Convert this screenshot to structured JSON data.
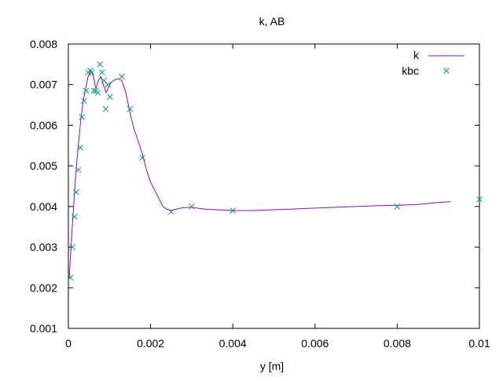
{
  "chart_data": {
    "type": "line",
    "title": "k, AB",
    "xlabel": "y [m]",
    "ylabel": "",
    "xlim": [
      0,
      0.01
    ],
    "ylim": [
      0.001,
      0.008
    ],
    "x_ticks": [
      "0",
      "0.002",
      "0.004",
      "0.006",
      "0.008",
      "0.01"
    ],
    "y_ticks": [
      "0.001",
      "0.002",
      "0.003",
      "0.004",
      "0.005",
      "0.006",
      "0.007",
      "0.008"
    ],
    "x_tick_values": [
      0,
      0.002,
      0.004,
      0.006,
      0.008,
      0.01
    ],
    "y_tick_values": [
      0.001,
      0.002,
      0.003,
      0.004,
      0.005,
      0.006,
      0.007,
      0.008
    ],
    "grid": false,
    "legend_position": "top-right",
    "series": [
      {
        "name": "k",
        "style": "line",
        "color": "#9400d3",
        "x": [
          2e-05,
          6e-05,
          0.0001,
          0.00014,
          0.00018,
          0.00024,
          0.0003,
          0.00036,
          0.00042,
          0.00048,
          0.00055,
          0.00061,
          0.00067,
          0.00073,
          0.00079,
          0.00085,
          0.00092,
          0.00098,
          0.00104,
          0.0011,
          0.0012,
          0.0013,
          0.0014,
          0.0015,
          0.0016,
          0.0017,
          0.0018,
          0.0019,
          0.002,
          0.0021,
          0.0022,
          0.0023,
          0.0024,
          0.0025,
          0.0026,
          0.0028,
          0.003,
          0.0032,
          0.0034,
          0.0036,
          0.0038,
          0.004,
          0.0045,
          0.005,
          0.0055,
          0.006,
          0.0065,
          0.007,
          0.0075,
          0.008,
          0.0085,
          0.009,
          0.0093
        ],
        "y": [
          0.00225,
          0.0029,
          0.0036,
          0.0042,
          0.0048,
          0.0055,
          0.0061,
          0.0066,
          0.0069,
          0.0072,
          0.00735,
          0.0072,
          0.0069,
          0.0071,
          0.0072,
          0.007,
          0.0068,
          0.00695,
          0.00705,
          0.0071,
          0.00715,
          0.0071,
          0.0068,
          0.0063,
          0.0059,
          0.0056,
          0.0053,
          0.0049,
          0.0046,
          0.0044,
          0.0042,
          0.004,
          0.00393,
          0.0039,
          0.00393,
          0.00397,
          0.00398,
          0.00395,
          0.00393,
          0.00392,
          0.00391,
          0.0039,
          0.0039,
          0.00392,
          0.00394,
          0.00396,
          0.00398,
          0.004,
          0.00402,
          0.00403,
          0.00405,
          0.0041,
          0.00412
        ]
      },
      {
        "name": "kbc",
        "style": "points",
        "marker": "x",
        "color": "#009e73",
        "x": [
          5e-05,
          0.0001,
          0.00015,
          0.00019,
          0.00024,
          0.00029,
          0.00033,
          0.00038,
          0.00043,
          0.00048,
          0.00053,
          0.00057,
          0.00062,
          0.00067,
          0.00072,
          0.00077,
          0.00082,
          0.00087,
          0.00091,
          0.00096,
          0.00101,
          0.0013,
          0.0015,
          0.0018,
          0.0025,
          0.003,
          0.004,
          0.008,
          0.01
        ],
        "y": [
          0.00225,
          0.003,
          0.00375,
          0.00435,
          0.0049,
          0.00545,
          0.0062,
          0.0066,
          0.00685,
          0.0073,
          0.00735,
          0.0073,
          0.00685,
          0.00685,
          0.0068,
          0.0075,
          0.0073,
          0.0071,
          0.0064,
          0.007,
          0.0067,
          0.0072,
          0.0064,
          0.0052,
          0.00387,
          0.004,
          0.0039,
          0.004,
          0.00418
        ]
      }
    ]
  }
}
